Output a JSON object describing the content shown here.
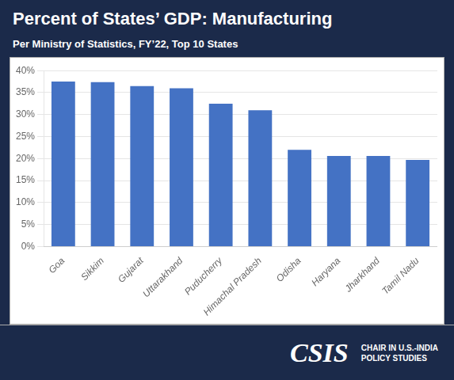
{
  "chart_data": {
    "type": "bar",
    "title": "Percent of States’ GDP: Manufacturing",
    "subtitle": "Per Ministry of Statistics, FY’22, Top 10 States",
    "categories": [
      "Goa",
      "Sikkim",
      "Gujarat",
      "Uttarakhand",
      "Puducherry",
      "Himachal Pradesh",
      "Odisha",
      "Haryana",
      "Jharkhand",
      "Tamil Nadu"
    ],
    "values": [
      37.5,
      37.4,
      36.5,
      36.0,
      32.5,
      31.0,
      22.0,
      20.6,
      20.6,
      19.7
    ],
    "color": "#4472C4",
    "ylim": [
      0,
      40
    ],
    "yticks": [
      {
        "value": 0,
        "label": "0%"
      },
      {
        "value": 5,
        "label": "5%"
      },
      {
        "value": 10,
        "label": "10%"
      },
      {
        "value": 15,
        "label": "15%"
      },
      {
        "value": 20,
        "label": "20%"
      },
      {
        "value": 25,
        "label": "25%"
      },
      {
        "value": 30,
        "label": "30%"
      },
      {
        "value": 35,
        "label": "35%"
      },
      {
        "value": 40,
        "label": "40%"
      }
    ],
    "grid": true,
    "annotations": [
      "CSIS",
      "CHAIR IN U.S.-INDIA\nPOLICY STUDIES"
    ]
  }
}
